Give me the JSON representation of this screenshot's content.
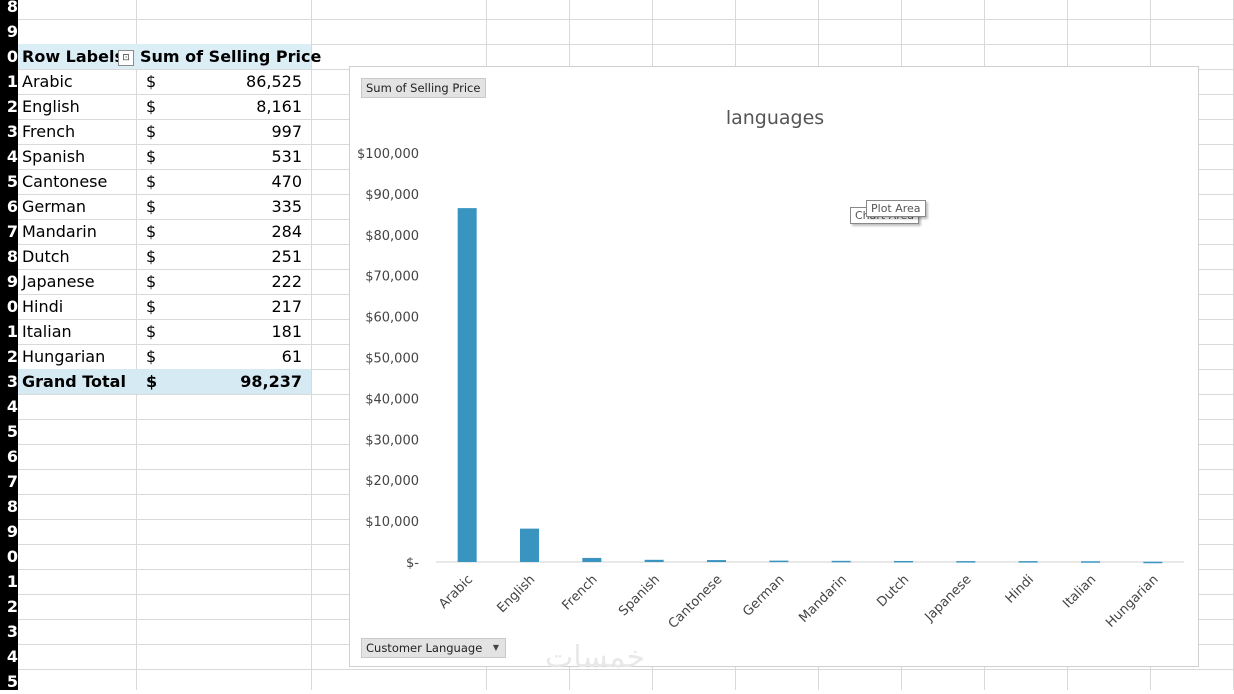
{
  "sheet": {
    "row_numbers": [
      "8",
      "9",
      "0",
      "1",
      "2",
      "3",
      "4",
      "5",
      "6",
      "7",
      "8",
      "9",
      "0",
      "1",
      "2",
      "3",
      "4",
      "5",
      "6",
      "7",
      "8",
      "9",
      "0",
      "1",
      "2",
      "3",
      "4",
      "5"
    ],
    "pivot": {
      "header_labels": "Row Labels",
      "header_values": "Sum of Selling Price",
      "filter_icon": "filter-dropdown-icon",
      "rows": [
        {
          "label": "Arabic",
          "currency": "$",
          "value": "86,525"
        },
        {
          "label": "English",
          "currency": "$",
          "value": "8,161"
        },
        {
          "label": "French",
          "currency": "$",
          "value": "997"
        },
        {
          "label": "Spanish",
          "currency": "$",
          "value": "531"
        },
        {
          "label": "Cantonese",
          "currency": "$",
          "value": "470"
        },
        {
          "label": "German",
          "currency": "$",
          "value": "335"
        },
        {
          "label": "Mandarin",
          "currency": "$",
          "value": "284"
        },
        {
          "label": "Dutch",
          "currency": "$",
          "value": "251"
        },
        {
          "label": "Japanese",
          "currency": "$",
          "value": "222"
        },
        {
          "label": "Hindi",
          "currency": "$",
          "value": "217"
        },
        {
          "label": "Italian",
          "currency": "$",
          "value": "181"
        },
        {
          "label": "Hungarian",
          "currency": "$",
          "value": "61"
        }
      ],
      "total": {
        "label": "Grand Total",
        "currency": "$",
        "value": "98,237"
      }
    }
  },
  "chart_panel": {
    "value_field_button": "Sum of Selling Price",
    "axis_field_button": "Customer Language",
    "axis_field_icon": "dropdown-arrow-icon",
    "tooltip_chart_area": "Chart Area",
    "tooltip_plot_area": "Plot Area",
    "bar_color": "#3a94c0"
  },
  "watermark": "خمسات",
  "chart_data": {
    "type": "bar",
    "title": "languages",
    "xlabel": "",
    "ylabel": "",
    "categories": [
      "Arabic",
      "English",
      "French",
      "Spanish",
      "Cantonese",
      "German",
      "Mandarin",
      "Dutch",
      "Japanese",
      "Hindi",
      "Italian",
      "Hungarian"
    ],
    "values": [
      86525,
      8161,
      997,
      531,
      470,
      335,
      284,
      251,
      222,
      217,
      181,
      61
    ],
    "ylim": [
      0,
      100000
    ],
    "yticks": [
      0,
      10000,
      20000,
      30000,
      40000,
      50000,
      60000,
      70000,
      80000,
      90000,
      100000
    ],
    "ytick_labels": [
      "$-",
      "$10,000",
      "$20,000",
      "$30,000",
      "$40,000",
      "$50,000",
      "$60,000",
      "$70,000",
      "$80,000",
      "$90,000",
      "$100,000"
    ],
    "grid": false,
    "legend": "none"
  }
}
